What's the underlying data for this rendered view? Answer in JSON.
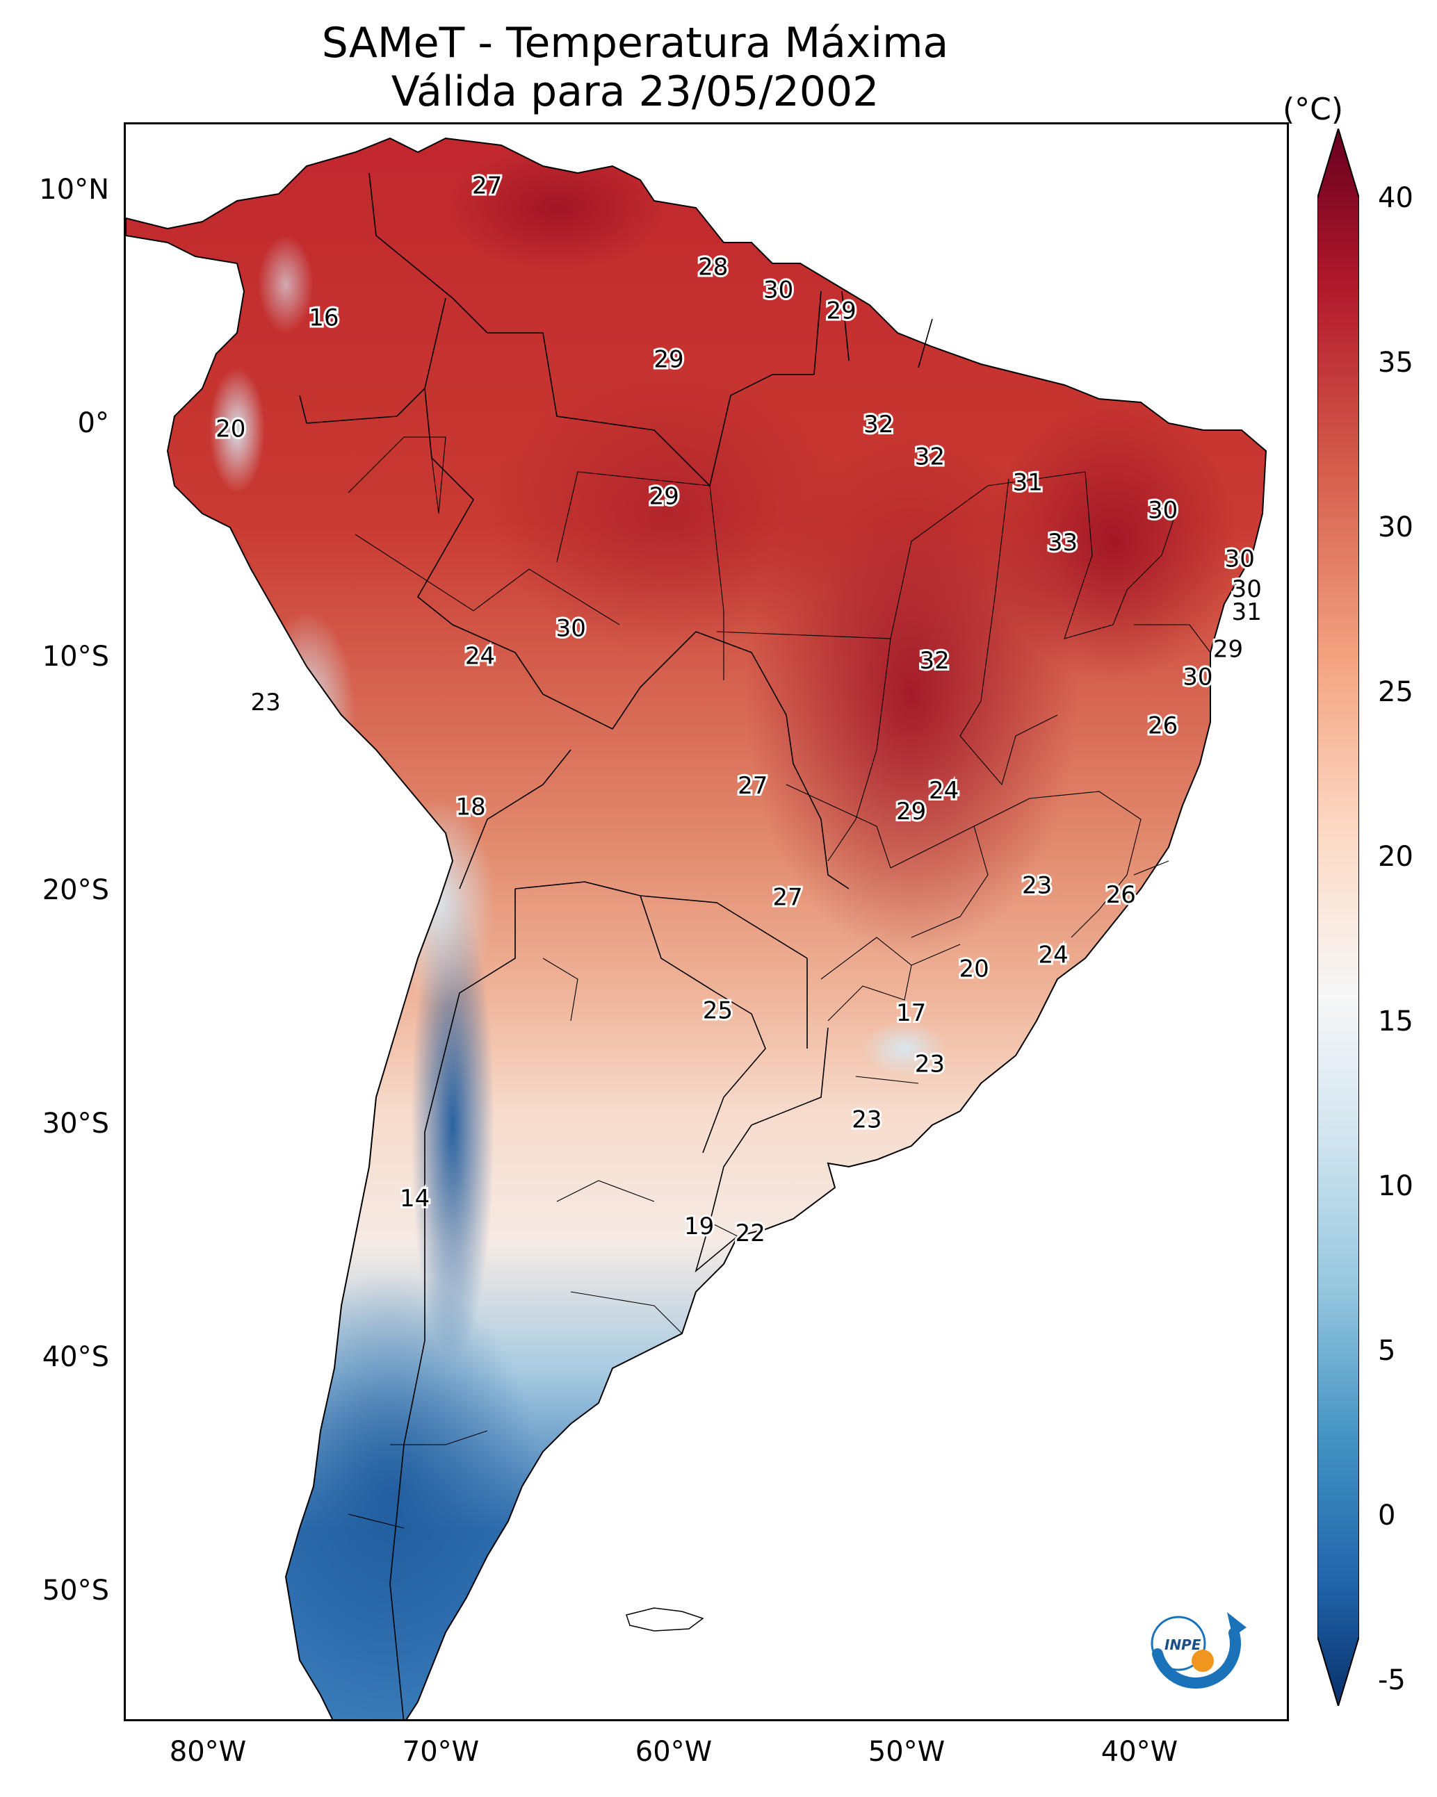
{
  "title": {
    "line1": "SAMeT - Temperatura Máxima",
    "line2": "Válida para 23/05/2002"
  },
  "axes": {
    "lat_labels": [
      "10°N",
      "0°",
      "10°S",
      "20°S",
      "30°S",
      "40°S",
      "50°S"
    ],
    "lon_labels": [
      "80°W",
      "70°W",
      "60°W",
      "50°W",
      "40°W"
    ]
  },
  "colorbar": {
    "unit": "(°C)",
    "ticks": [
      "40",
      "35",
      "30",
      "25",
      "20",
      "15",
      "10",
      "5",
      "0",
      "-5"
    ],
    "range": [
      -5,
      40
    ],
    "colors": [
      "#08306b",
      "#2166ac",
      "#4393c3",
      "#92c5de",
      "#d1e5f0",
      "#f7f7f7",
      "#fddbc7",
      "#f4a582",
      "#d6604d",
      "#b2182b",
      "#67001f"
    ]
  },
  "map": {
    "extent_lon": [
      -83,
      -33
    ],
    "extent_lat": [
      -56,
      13
    ],
    "station_values": [
      {
        "lon": -67.5,
        "lat": 10.3,
        "value": "27"
      },
      {
        "lon": -74.5,
        "lat": 4.6,
        "value": "16"
      },
      {
        "lon": -78.5,
        "lat": -0.2,
        "value": "20"
      },
      {
        "lon": -57.8,
        "lat": 6.8,
        "value": "28"
      },
      {
        "lon": -55.0,
        "lat": 5.8,
        "value": "30"
      },
      {
        "lon": -52.3,
        "lat": 4.9,
        "value": "29"
      },
      {
        "lon": -59.7,
        "lat": 2.8,
        "value": "29"
      },
      {
        "lon": -50.7,
        "lat": 0.0,
        "value": "32"
      },
      {
        "lon": -48.5,
        "lat": -1.4,
        "value": "32"
      },
      {
        "lon": -44.3,
        "lat": -2.5,
        "value": "31"
      },
      {
        "lon": -38.5,
        "lat": -3.7,
        "value": "30"
      },
      {
        "lon": -59.9,
        "lat": -3.1,
        "value": "29"
      },
      {
        "lon": -42.8,
        "lat": -5.1,
        "value": "33"
      },
      {
        "lon": -35.2,
        "lat": -5.8,
        "value": "30"
      },
      {
        "lon": -34.9,
        "lat": -7.1,
        "value": "30"
      },
      {
        "lon": -34.9,
        "lat": -8.1,
        "value": "31"
      },
      {
        "lon": -63.9,
        "lat": -8.8,
        "value": "30"
      },
      {
        "lon": -67.8,
        "lat": -10.0,
        "value": "24"
      },
      {
        "lon": -48.3,
        "lat": -10.2,
        "value": "32"
      },
      {
        "lon": -35.7,
        "lat": -9.7,
        "value": "29"
      },
      {
        "lon": -37.0,
        "lat": -10.9,
        "value": "30"
      },
      {
        "lon": -38.5,
        "lat": -13.0,
        "value": "26"
      },
      {
        "lon": -77.0,
        "lat": -12.0,
        "value": "23"
      },
      {
        "lon": -56.1,
        "lat": -15.6,
        "value": "27"
      },
      {
        "lon": -49.3,
        "lat": -16.7,
        "value": "29"
      },
      {
        "lon": -47.9,
        "lat": -15.8,
        "value": "24"
      },
      {
        "lon": -68.2,
        "lat": -16.5,
        "value": "18"
      },
      {
        "lon": -54.6,
        "lat": -20.4,
        "value": "27"
      },
      {
        "lon": -43.9,
        "lat": -19.9,
        "value": "23"
      },
      {
        "lon": -40.3,
        "lat": -20.3,
        "value": "26"
      },
      {
        "lon": -43.2,
        "lat": -22.9,
        "value": "24"
      },
      {
        "lon": -46.6,
        "lat": -23.5,
        "value": "20"
      },
      {
        "lon": -57.6,
        "lat": -25.3,
        "value": "25"
      },
      {
        "lon": -49.3,
        "lat": -25.4,
        "value": "17"
      },
      {
        "lon": -48.5,
        "lat": -27.6,
        "value": "23"
      },
      {
        "lon": -51.2,
        "lat": -30.0,
        "value": "23"
      },
      {
        "lon": -70.6,
        "lat": -33.4,
        "value": "14"
      },
      {
        "lon": -56.2,
        "lat": -34.9,
        "value": "22"
      },
      {
        "lon": -58.4,
        "lat": -34.6,
        "value": "19"
      }
    ]
  }
}
